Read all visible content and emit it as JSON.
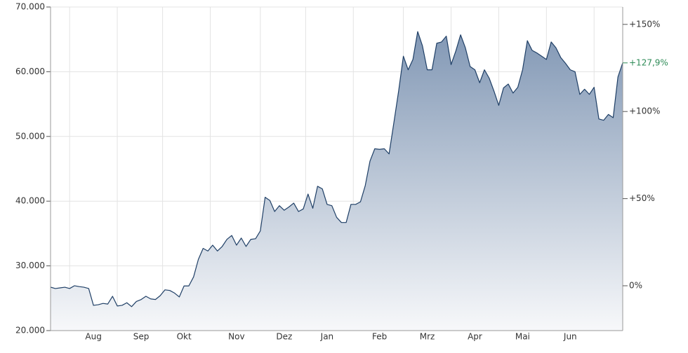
{
  "chart_data": {
    "type": "area",
    "categories": [
      null,
      null,
      null,
      null,
      null,
      null,
      null,
      null,
      null,
      "Aug",
      null,
      null,
      null,
      null,
      null,
      null,
      null,
      null,
      null,
      "Sep",
      null,
      null,
      null,
      null,
      null,
      null,
      null,
      null,
      "Okt",
      null,
      null,
      null,
      null,
      null,
      null,
      null,
      null,
      null,
      null,
      "Nov",
      null,
      null,
      null,
      null,
      null,
      null,
      null,
      null,
      null,
      "Dez",
      null,
      null,
      null,
      null,
      null,
      null,
      null,
      null,
      "Jan",
      null,
      null,
      null,
      null,
      null,
      null,
      null,
      null,
      null,
      null,
      "Feb",
      null,
      null,
      null,
      null,
      null,
      null,
      null,
      null,
      null,
      "Mrz",
      null,
      null,
      null,
      null,
      null,
      null,
      null,
      null,
      null,
      "Apr",
      null,
      null,
      null,
      null,
      null,
      null,
      null,
      null,
      null,
      "Mai",
      null,
      null,
      null,
      null,
      null,
      null,
      null,
      null,
      null,
      "Jun",
      null,
      null,
      null,
      null,
      null,
      null,
      null,
      null,
      null,
      null,
      null
    ],
    "series": [
      {
        "color": "#1f3f66",
        "values": [
          26710,
          26500,
          26600,
          26700,
          26500,
          26930,
          26800,
          26700,
          26500,
          23900,
          24000,
          24200,
          24100,
          25300,
          23800,
          23900,
          24300,
          23700,
          24500,
          24800,
          25300,
          24900,
          24800,
          25400,
          26300,
          26200,
          25800,
          25200,
          26900,
          26900,
          28300,
          31000,
          32700,
          32300,
          33200,
          32300,
          33000,
          34100,
          34700,
          33200,
          34300,
          33000,
          34100,
          34200,
          35400,
          40600,
          40100,
          38400,
          39300,
          38600,
          39100,
          39700,
          38400,
          38800,
          41100,
          38900,
          42300,
          41900,
          39500,
          39300,
          37500,
          36700,
          36700,
          39500,
          39500,
          39900,
          42400,
          46200,
          48100,
          48000,
          48100,
          47300,
          52100,
          57000,
          62400,
          60300,
          61900,
          66200,
          64000,
          60300,
          60300,
          64400,
          64600,
          65500,
          61100,
          63200,
          65700,
          63700,
          60800,
          60300,
          58300,
          60300,
          59000,
          57000,
          54800,
          57500,
          58100,
          56700,
          57600,
          60300,
          64800,
          63300,
          62900,
          62400,
          61900,
          64600,
          63700,
          62200,
          61300,
          60300,
          60000,
          56500,
          57300,
          56500,
          57600,
          52700,
          52500,
          53400,
          52900,
          59200,
          61370
        ]
      }
    ],
    "ylim": [
      20000,
      70000
    ],
    "yticks": [
      {
        "value": 20000,
        "label": "20.000"
      },
      {
        "value": 30000,
        "label": "30.000"
      },
      {
        "value": 40000,
        "label": "40.000"
      },
      {
        "value": 50000,
        "label": "50.000"
      },
      {
        "value": 60000,
        "label": "60.000"
      },
      {
        "value": 70000,
        "label": "70.000"
      }
    ],
    "y2lim": [
      -25.72,
      159.97
    ],
    "y2ticks": [
      {
        "value": 0,
        "label": "0%"
      },
      {
        "value": 50,
        "label": "+50%"
      },
      {
        "value": 100,
        "label": "+100%"
      },
      {
        "value": 150,
        "label": "+150%"
      }
    ],
    "current_marker": {
      "value": 127.9,
      "label": "+127,9%",
      "color": "#2e8b57"
    },
    "grid": true
  }
}
